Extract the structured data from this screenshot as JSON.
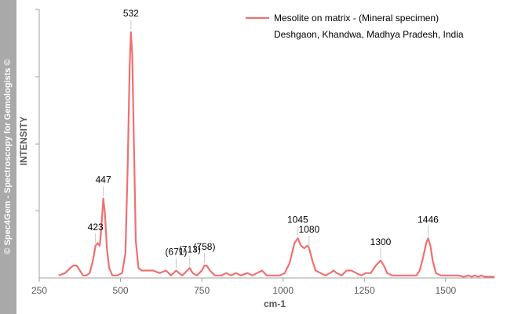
{
  "watermark": "© Spec4Gem - Spectroscopy for Gemologists ©",
  "chart_data": {
    "type": "line",
    "title": "",
    "xlabel": "cm-1",
    "ylabel": "INTENSITY",
    "xlim": [
      250,
      1650
    ],
    "ylim": [
      0,
      1
    ],
    "x_ticks": [
      250,
      500,
      750,
      1000,
      1250,
      1500
    ],
    "y_tick_labels": false,
    "grid": false,
    "legend_placement": "top-right",
    "series": [
      {
        "name": "Mesolite on matrix - (Mineral specimen)",
        "subtitle": "Deshgaon, Khandwa, Madhya Pradesh, India",
        "color": "#f07070",
        "points": [
          [
            310,
            0.01
          ],
          [
            330,
            0.02
          ],
          [
            345,
            0.04
          ],
          [
            355,
            0.05
          ],
          [
            365,
            0.05
          ],
          [
            375,
            0.03
          ],
          [
            385,
            0.01
          ],
          [
            395,
            0.01
          ],
          [
            405,
            0.02
          ],
          [
            415,
            0.07
          ],
          [
            423,
            0.13
          ],
          [
            430,
            0.14
          ],
          [
            436,
            0.13
          ],
          [
            441,
            0.2
          ],
          [
            447,
            0.32
          ],
          [
            452,
            0.26
          ],
          [
            458,
            0.12
          ],
          [
            465,
            0.04
          ],
          [
            475,
            0.01
          ],
          [
            490,
            0.01
          ],
          [
            505,
            0.02
          ],
          [
            515,
            0.1
          ],
          [
            522,
            0.45
          ],
          [
            528,
            0.85
          ],
          [
            532,
            0.99
          ],
          [
            536,
            0.9
          ],
          [
            541,
            0.55
          ],
          [
            547,
            0.15
          ],
          [
            555,
            0.04
          ],
          [
            565,
            0.03
          ],
          [
            580,
            0.03
          ],
          [
            600,
            0.03
          ],
          [
            620,
            0.02
          ],
          [
            640,
            0.03
          ],
          [
            655,
            0.01
          ],
          [
            671,
            0.03
          ],
          [
            680,
            0.02
          ],
          [
            690,
            0.01
          ],
          [
            705,
            0.03
          ],
          [
            713,
            0.04
          ],
          [
            722,
            0.02
          ],
          [
            735,
            0.01
          ],
          [
            750,
            0.03
          ],
          [
            758,
            0.05
          ],
          [
            765,
            0.05
          ],
          [
            775,
            0.03
          ],
          [
            790,
            0.01
          ],
          [
            810,
            0.01
          ],
          [
            825,
            0.02
          ],
          [
            840,
            0.01
          ],
          [
            855,
            0.02
          ],
          [
            870,
            0.01
          ],
          [
            890,
            0.02
          ],
          [
            905,
            0.01
          ],
          [
            920,
            0.02
          ],
          [
            935,
            0.03
          ],
          [
            950,
            0.01
          ],
          [
            970,
            0.01
          ],
          [
            990,
            0.01
          ],
          [
            1005,
            0.02
          ],
          [
            1020,
            0.06
          ],
          [
            1035,
            0.14
          ],
          [
            1045,
            0.16
          ],
          [
            1055,
            0.13
          ],
          [
            1065,
            0.12
          ],
          [
            1075,
            0.13
          ],
          [
            1080,
            0.12
          ],
          [
            1090,
            0.07
          ],
          [
            1100,
            0.03
          ],
          [
            1115,
            0.02
          ],
          [
            1130,
            0.01
          ],
          [
            1145,
            0.02
          ],
          [
            1155,
            0.03
          ],
          [
            1165,
            0.02
          ],
          [
            1180,
            0.01
          ],
          [
            1195,
            0.03
          ],
          [
            1210,
            0.03
          ],
          [
            1225,
            0.02
          ],
          [
            1240,
            0.01
          ],
          [
            1255,
            0.02
          ],
          [
            1270,
            0.02
          ],
          [
            1285,
            0.05
          ],
          [
            1300,
            0.07
          ],
          [
            1310,
            0.05
          ],
          [
            1320,
            0.02
          ],
          [
            1335,
            0.01
          ],
          [
            1350,
            0.01
          ],
          [
            1370,
            0.01
          ],
          [
            1390,
            0.01
          ],
          [
            1410,
            0.01
          ],
          [
            1420,
            0.03
          ],
          [
            1430,
            0.08
          ],
          [
            1440,
            0.14
          ],
          [
            1446,
            0.16
          ],
          [
            1453,
            0.13
          ],
          [
            1460,
            0.07
          ],
          [
            1470,
            0.02
          ],
          [
            1485,
            0.01
          ],
          [
            1500,
            0.01
          ],
          [
            1520,
            0.01
          ],
          [
            1540,
            0.01
          ],
          [
            1555,
            0.005
          ],
          [
            1570,
            0.01
          ],
          [
            1580,
            0.005
          ],
          [
            1590,
            0.01
          ],
          [
            1600,
            0.005
          ],
          [
            1610,
            0.01
          ],
          [
            1620,
            0.005
          ],
          [
            1635,
            0.005
          ],
          [
            1650,
            0.005
          ]
        ]
      }
    ],
    "annotations": [
      {
        "text": "423",
        "x": 423,
        "y": 0.13
      },
      {
        "text": "447",
        "x": 447,
        "y": 0.32
      },
      {
        "text": "532",
        "x": 532,
        "y": 0.99
      },
      {
        "text": "(671)",
        "x": 671,
        "y": 0.03
      },
      {
        "text": "(713)",
        "x": 713,
        "y": 0.04
      },
      {
        "text": "(758)",
        "x": 758,
        "y": 0.05
      },
      {
        "text": "1045",
        "x": 1045,
        "y": 0.16
      },
      {
        "text": "1080",
        "x": 1080,
        "y": 0.12
      },
      {
        "text": "1300",
        "x": 1300,
        "y": 0.07
      },
      {
        "text": "1446",
        "x": 1446,
        "y": 0.16
      }
    ]
  }
}
